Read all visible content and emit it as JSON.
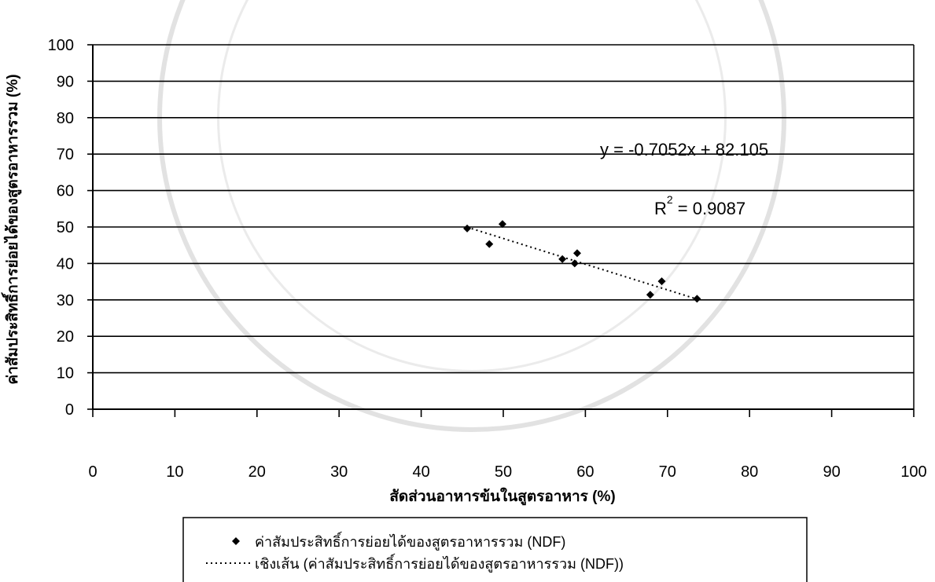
{
  "chart_data": {
    "type": "scatter",
    "xlabel": "สัดส่วนอาหารข้นในสูตรอาหาร (%)",
    "ylabel": "ค่าสัมประสิทธิ์การย่อยได้ของสูตรอาหารรวม (%)",
    "xlim": [
      0,
      100
    ],
    "ylim": [
      0,
      100
    ],
    "x_ticks": [
      "0",
      "10",
      "20",
      "30",
      "40",
      "50",
      "60",
      "70",
      "80",
      "90",
      "100"
    ],
    "y_ticks": [
      "0",
      "10",
      "20",
      "30",
      "40",
      "50",
      "60",
      "70",
      "80",
      "90",
      "100"
    ],
    "grid": "horizontal",
    "legend_position": "bottom",
    "series": [
      {
        "name": "ค่าสัมประสิทธิ์การย่อยได้ของสูตรอาหารรวม (NDF)",
        "marker": "diamond",
        "color": "#000000",
        "points": [
          {
            "x": 45.6,
            "y": 49.6
          },
          {
            "x": 48.3,
            "y": 45.3
          },
          {
            "x": 49.9,
            "y": 50.8
          },
          {
            "x": 57.2,
            "y": 41.2
          },
          {
            "x": 58.7,
            "y": 40.0
          },
          {
            "x": 59.0,
            "y": 42.8
          },
          {
            "x": 67.9,
            "y": 31.4
          },
          {
            "x": 69.3,
            "y": 35.1
          },
          {
            "x": 73.6,
            "y": 30.3
          }
        ]
      }
    ],
    "trendline": {
      "name": "เชิงเส้น (ค่าสัมประสิทธิ์การย่อยได้ของสูตรอาหารรวม (NDF))",
      "slope": -0.7052,
      "intercept": 82.105,
      "x_range": [
        45.6,
        73.6
      ],
      "style": "dotted",
      "color": "#000000"
    },
    "annotations": {
      "equation": "y = -0.7052x + 82.105",
      "r_label": "R",
      "r_exponent": "2",
      "r_value": " = 0.9087"
    }
  }
}
